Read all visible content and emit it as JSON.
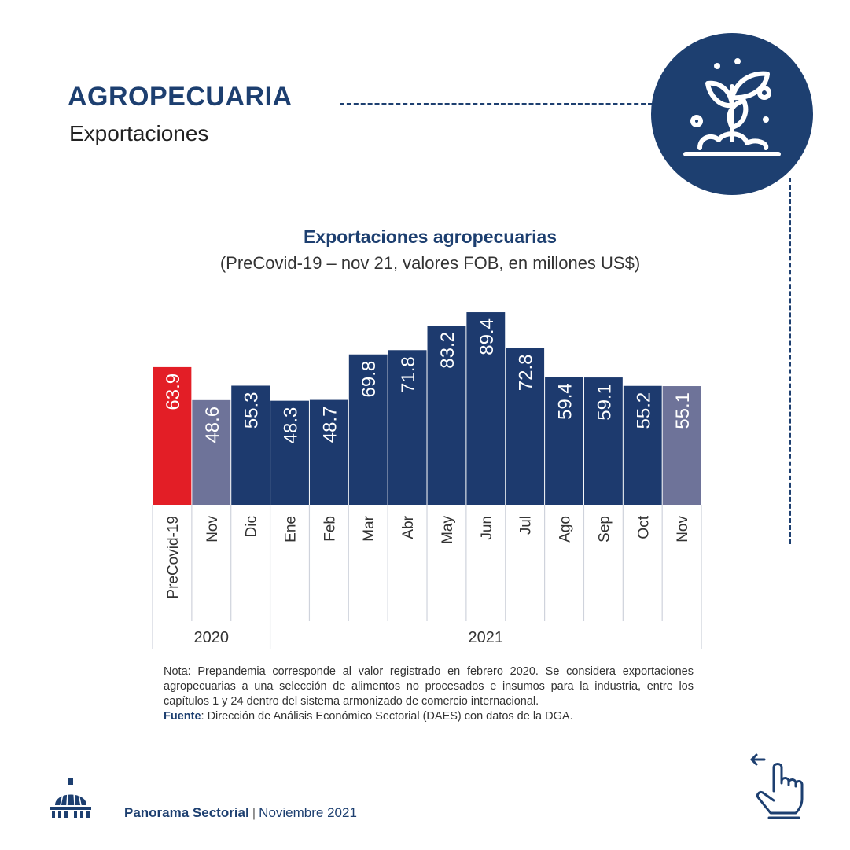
{
  "header": {
    "title": "AGROPECUARIA",
    "subtitle": "Exportaciones",
    "icon": "plant-growth-icon"
  },
  "chart_data": {
    "type": "bar",
    "title": "Exportaciones agropecuarias",
    "subtitle": "(PreCovid-19 – nov 21, valores FOB, en millones US$)",
    "categories": [
      "PreCovid-19",
      "Nov",
      "Dic",
      "Ene",
      "Feb",
      "Mar",
      "Abr",
      "May",
      "Jun",
      "Jul",
      "Ago",
      "Sep",
      "Oct",
      "Nov"
    ],
    "values": [
      63.9,
      48.6,
      55.3,
      48.3,
      48.7,
      69.8,
      71.8,
      83.2,
      89.4,
      72.8,
      59.4,
      59.1,
      55.2,
      55.1
    ],
    "labels": [
      "63.9",
      "48.6",
      "55.3",
      "48.3",
      "48.7",
      "69.8",
      "71.8",
      "83.2",
      "89.4",
      "72.8",
      "59.4",
      "59.1",
      "55.2",
      "55.1"
    ],
    "colors": [
      "#e31e26",
      "#6e7399",
      "#1d3a6e",
      "#1d3a6e",
      "#1d3a6e",
      "#1d3a6e",
      "#1d3a6e",
      "#1d3a6e",
      "#1d3a6e",
      "#1d3a6e",
      "#1d3a6e",
      "#1d3a6e",
      "#1d3a6e",
      "#6e7399"
    ],
    "groups": [
      {
        "label": "2020",
        "start": 0,
        "end": 2
      },
      {
        "label": "2021",
        "start": 3,
        "end": 13
      }
    ],
    "ylim": [
      0,
      100
    ],
    "xlabel": "",
    "ylabel": "",
    "grid": false,
    "legend": "none"
  },
  "note": {
    "text": "Nota: Prepandemia corresponde al valor registrado en febrero 2020. Se considera exportaciones agropecuarias a una selección de alimentos no procesados e insumos para la industria, entre los capítulos 1 y 24 dentro del sistema armonizado de comercio internacional.",
    "source_label": "Fuente",
    "source_text": ": Dirección de Análisis Económico Sectorial (DAES) con datos de la DGA."
  },
  "footer": {
    "brand": "Panorama Sectorial",
    "separator": "|",
    "date": "Noviembre 2021"
  }
}
